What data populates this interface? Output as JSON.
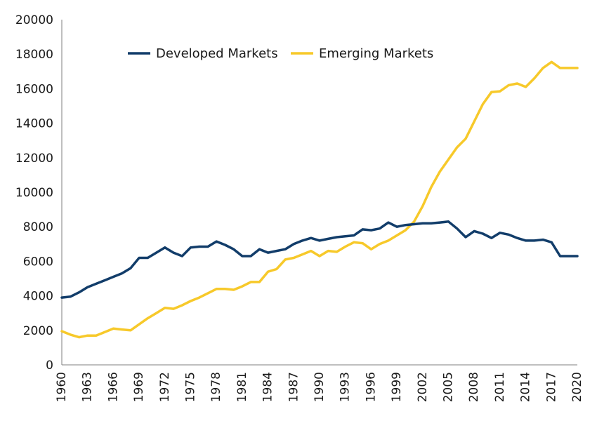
{
  "chart_data": {
    "type": "line",
    "title": "",
    "xlabel": "",
    "ylabel": "",
    "ylim": [
      0,
      20000
    ],
    "xlim": [
      1960,
      2020
    ],
    "yticks": [
      "0",
      "2000",
      "4000",
      "6000",
      "8000",
      "10000",
      "12000",
      "14000",
      "16000",
      "18000",
      "20000"
    ],
    "xticks": [
      "1960",
      "1963",
      "1966",
      "1969",
      "1972",
      "1975",
      "1978",
      "1981",
      "1984",
      "1987",
      "1990",
      "1993",
      "1996",
      "1999",
      "2002",
      "2005",
      "2008",
      "2011",
      "2014",
      "2017",
      "2020"
    ],
    "legend_position": "top",
    "grid": false,
    "x": [
      1960,
      1961,
      1962,
      1963,
      1964,
      1965,
      1966,
      1967,
      1968,
      1969,
      1970,
      1971,
      1972,
      1973,
      1974,
      1975,
      1976,
      1977,
      1978,
      1979,
      1980,
      1981,
      1982,
      1983,
      1984,
      1985,
      1986,
      1987,
      1988,
      1989,
      1990,
      1991,
      1992,
      1993,
      1994,
      1995,
      1996,
      1997,
      1998,
      1999,
      2000,
      2001,
      2002,
      2003,
      2004,
      2005,
      2006,
      2007,
      2008,
      2009,
      2010,
      2011,
      2012,
      2013,
      2014,
      2015,
      2016,
      2017,
      2018,
      2019,
      2020
    ],
    "series": [
      {
        "name": "Developed Markets",
        "color": "#123d6a",
        "values": [
          3900,
          3950,
          4200,
          4500,
          4700,
          4900,
          5100,
          5300,
          5600,
          6200,
          6200,
          6500,
          6800,
          6500,
          6300,
          6800,
          6850,
          6850,
          7150,
          6950,
          6700,
          6300,
          6300,
          6700,
          6500,
          6600,
          6700,
          7000,
          7200,
          7350,
          7200,
          7300,
          7400,
          7450,
          7500,
          7850,
          7800,
          7900,
          8250,
          8000,
          8100,
          8150,
          8200,
          8200,
          8250,
          8300,
          7900,
          7400,
          7750,
          7600,
          7350,
          7650,
          7550,
          7350,
          7200,
          7200,
          7250,
          7100,
          6300,
          6300,
          6300
        ]
      },
      {
        "name": "Emerging Markets",
        "color": "#f7c92a",
        "values": [
          1950,
          1750,
          1600,
          1700,
          1700,
          1900,
          2100,
          2050,
          2000,
          2350,
          2700,
          3000,
          3300,
          3250,
          3450,
          3700,
          3900,
          4150,
          4400,
          4400,
          4350,
          4550,
          4800,
          4800,
          5400,
          5550,
          6100,
          6200,
          6400,
          6600,
          6300,
          6600,
          6550,
          6850,
          7100,
          7050,
          6700,
          7000,
          7200,
          7500,
          7800,
          8300,
          9200,
          10300,
          11200,
          11900,
          12600,
          13100,
          14100,
          15100,
          15800,
          15850,
          16200,
          16300,
          16100,
          16600,
          17200,
          17550,
          17200,
          17200,
          17200
        ]
      }
    ]
  }
}
